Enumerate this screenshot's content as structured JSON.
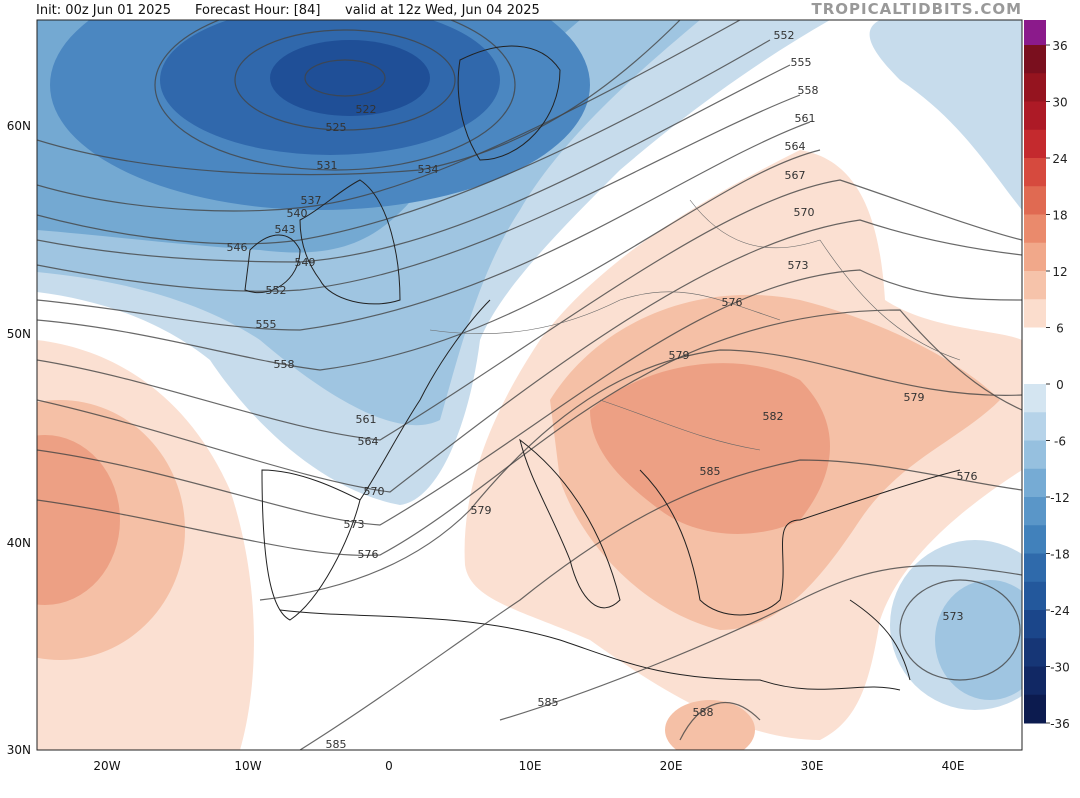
{
  "header": {
    "init": "Init: 00z Jun 01 2025",
    "forecast_hour": "Forecast Hour: [84]",
    "valid": "valid at 12z Wed, Jun 04 2025",
    "watermark": "TROPICALTIDBITS.COM"
  },
  "latitude_labels": [
    "60N",
    "50N",
    "40N",
    "30N"
  ],
  "longitude_labels": [
    "20W",
    "10W",
    "0",
    "10E",
    "20E",
    "30E",
    "40E"
  ],
  "contour_labels": [
    522,
    525,
    531,
    534,
    537,
    540,
    543,
    546,
    549,
    552,
    555,
    558,
    561,
    564,
    570,
    573,
    576,
    579,
    585,
    552,
    555,
    558,
    561,
    564,
    567,
    570,
    573,
    576,
    579,
    582,
    585,
    579,
    576,
    573,
    588,
    585
  ],
  "colorbar": {
    "ticks": [
      36,
      30,
      24,
      18,
      12,
      6,
      0,
      -6,
      -12,
      -18,
      -24,
      -30,
      -36
    ],
    "colors": [
      "#8b1a8b",
      "#7a0f1e",
      "#95141f",
      "#ad1a26",
      "#c42a2e",
      "#d64a3e",
      "#e06a52",
      "#ea8a6c",
      "#f1a88a",
      "#f6c3aa",
      "#fbddcd",
      "#ffffff",
      "#ffffff",
      "#d4e5f1",
      "#b6d3e9",
      "#96c0df",
      "#76abd4",
      "#5a96c8",
      "#4181bb",
      "#2f6aab",
      "#23589c",
      "#1b468a",
      "#163676",
      "#112864",
      "#0c1b4f"
    ]
  }
}
